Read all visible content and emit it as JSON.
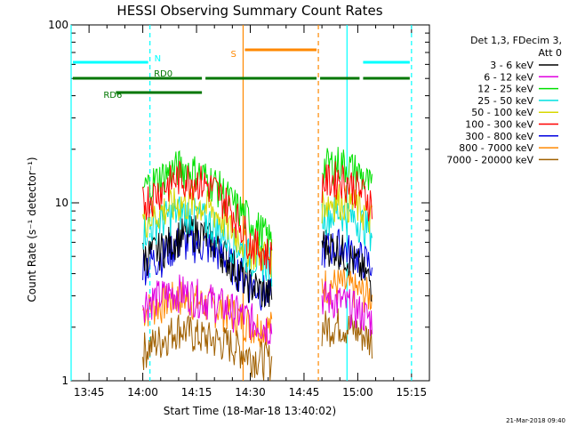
{
  "chart_data": {
    "type": "line",
    "title": "HESSI Observing Summary Count Rates",
    "xlabel": "Start Time (18-Mar-18 13:40:02)",
    "ylabel": "Count Rate (s⁻¹ detector⁻¹)",
    "x_unit": "minutes after 13:40:02",
    "xlim": [
      0,
      100
    ],
    "ylim": [
      1,
      100
    ],
    "yscale": "log",
    "x_ticks": [
      "13:45",
      "14:00",
      "14:15",
      "14:30",
      "14:45",
      "15:00",
      "15:15"
    ],
    "y_ticks": [
      "1",
      "10",
      "100"
    ],
    "legend_header": [
      "Det 1,3, FDecim 3,",
      "Att 0"
    ],
    "legend_position": "right",
    "footer_timestamp": "21-Mar-2018 09:40",
    "series": [
      {
        "name": "3 - 6 keV",
        "color": "#000000",
        "x": [
          20,
          25,
          30,
          35,
          40,
          45,
          50,
          56,
          70,
          75,
          80,
          84
        ],
        "values": [
          5.0,
          5.5,
          6.5,
          7.0,
          6.0,
          4.5,
          3.5,
          3.0,
          6.0,
          5.5,
          4.5,
          3.5
        ]
      },
      {
        "name": "6 - 12 keV",
        "color": "#e000e0",
        "x": [
          20,
          25,
          30,
          35,
          40,
          45,
          50,
          56,
          70,
          75,
          80,
          84
        ],
        "values": [
          2.8,
          3.0,
          3.2,
          3.0,
          2.8,
          2.5,
          2.2,
          2.0,
          3.0,
          2.8,
          2.5,
          2.2
        ]
      },
      {
        "name": "12 - 25 keV",
        "color": "#00e000",
        "x": [
          20,
          25,
          30,
          35,
          40,
          45,
          50,
          56,
          70,
          75,
          80,
          84
        ],
        "values": [
          12,
          14,
          16,
          15,
          13,
          10,
          8,
          6,
          16,
          17,
          15,
          12
        ]
      },
      {
        "name": "25 - 50 keV",
        "color": "#00e0e0",
        "x": [
          20,
          25,
          30,
          35,
          40,
          45,
          50,
          56,
          70,
          75,
          80,
          84
        ],
        "values": [
          7.0,
          8.0,
          9.0,
          8.5,
          7.5,
          6.0,
          5.0,
          4.5,
          8.5,
          9.0,
          8.0,
          7.0
        ]
      },
      {
        "name": "50 - 100 keV",
        "color": "#d8d800",
        "x": [
          20,
          25,
          30,
          35,
          40,
          45,
          50,
          56,
          70,
          75,
          80,
          84
        ],
        "values": [
          8,
          9,
          10,
          10,
          9,
          7,
          5.5,
          5,
          10,
          10.5,
          9.5,
          8
        ]
      },
      {
        "name": "100 - 300 keV",
        "color": "#ff0000",
        "x": [
          20,
          25,
          30,
          35,
          40,
          45,
          50,
          56,
          70,
          75,
          80,
          84
        ],
        "values": [
          10,
          12,
          14,
          13.5,
          12,
          9,
          6,
          5,
          13,
          14,
          12,
          10
        ]
      },
      {
        "name": "300 - 800 keV",
        "color": "#0000e0",
        "x": [
          20,
          25,
          30,
          35,
          40,
          45,
          50,
          56,
          70,
          75,
          80,
          84
        ],
        "values": [
          4.5,
          5,
          6,
          6,
          5.5,
          4.5,
          3.5,
          3,
          5.5,
          5.8,
          5,
          4.5
        ]
      },
      {
        "name": "800 - 7000 keV",
        "color": "#ff8800",
        "x": [
          20,
          25,
          30,
          35,
          40,
          45,
          50,
          56,
          70,
          75,
          80,
          84
        ],
        "values": [
          2.5,
          2.7,
          3,
          2.8,
          2.6,
          2.4,
          2.1,
          2,
          3.5,
          3.5,
          3.2,
          3
        ]
      },
      {
        "name": "7000 - 20000 keV",
        "color": "#a06000",
        "x": [
          20,
          25,
          30,
          35,
          40,
          45,
          50,
          56,
          70,
          75,
          80,
          84
        ],
        "values": [
          1.5,
          1.7,
          2,
          1.8,
          1.7,
          1.6,
          1.4,
          1.3,
          2,
          2.1,
          1.9,
          1.7
        ]
      }
    ],
    "flag_bars": [
      {
        "label": "N",
        "color": "#00ffff",
        "y_frac": 0.895,
        "segments": [
          [
            0,
            22
          ],
          [
            81,
            95
          ]
        ]
      },
      {
        "label": "S",
        "color": "#ff8800",
        "y_frac": 0.93,
        "segments": [
          [
            48,
            69
          ]
        ]
      },
      {
        "label": "RD0",
        "color": "#007700",
        "y_frac": 0.85,
        "segments": [
          [
            0,
            37
          ],
          [
            37,
            69
          ],
          [
            69,
            81
          ],
          [
            81,
            95
          ]
        ]
      },
      {
        "label": "RD6",
        "color": "#007700",
        "y_frac": 0.81,
        "segments": [
          [
            12,
            37
          ]
        ]
      }
    ],
    "vertical_lines": [
      {
        "x": 0,
        "color": "#00ffff",
        "style": "solid"
      },
      {
        "x": 22,
        "color": "#00ffff",
        "style": "dashed"
      },
      {
        "x": 48,
        "color": "#ff8800",
        "style": "solid"
      },
      {
        "x": 69,
        "color": "#ff8800",
        "style": "dashed"
      },
      {
        "x": 77,
        "color": "#00ffff",
        "style": "solid"
      },
      {
        "x": 95,
        "color": "#00ffff",
        "style": "dashed"
      }
    ]
  }
}
